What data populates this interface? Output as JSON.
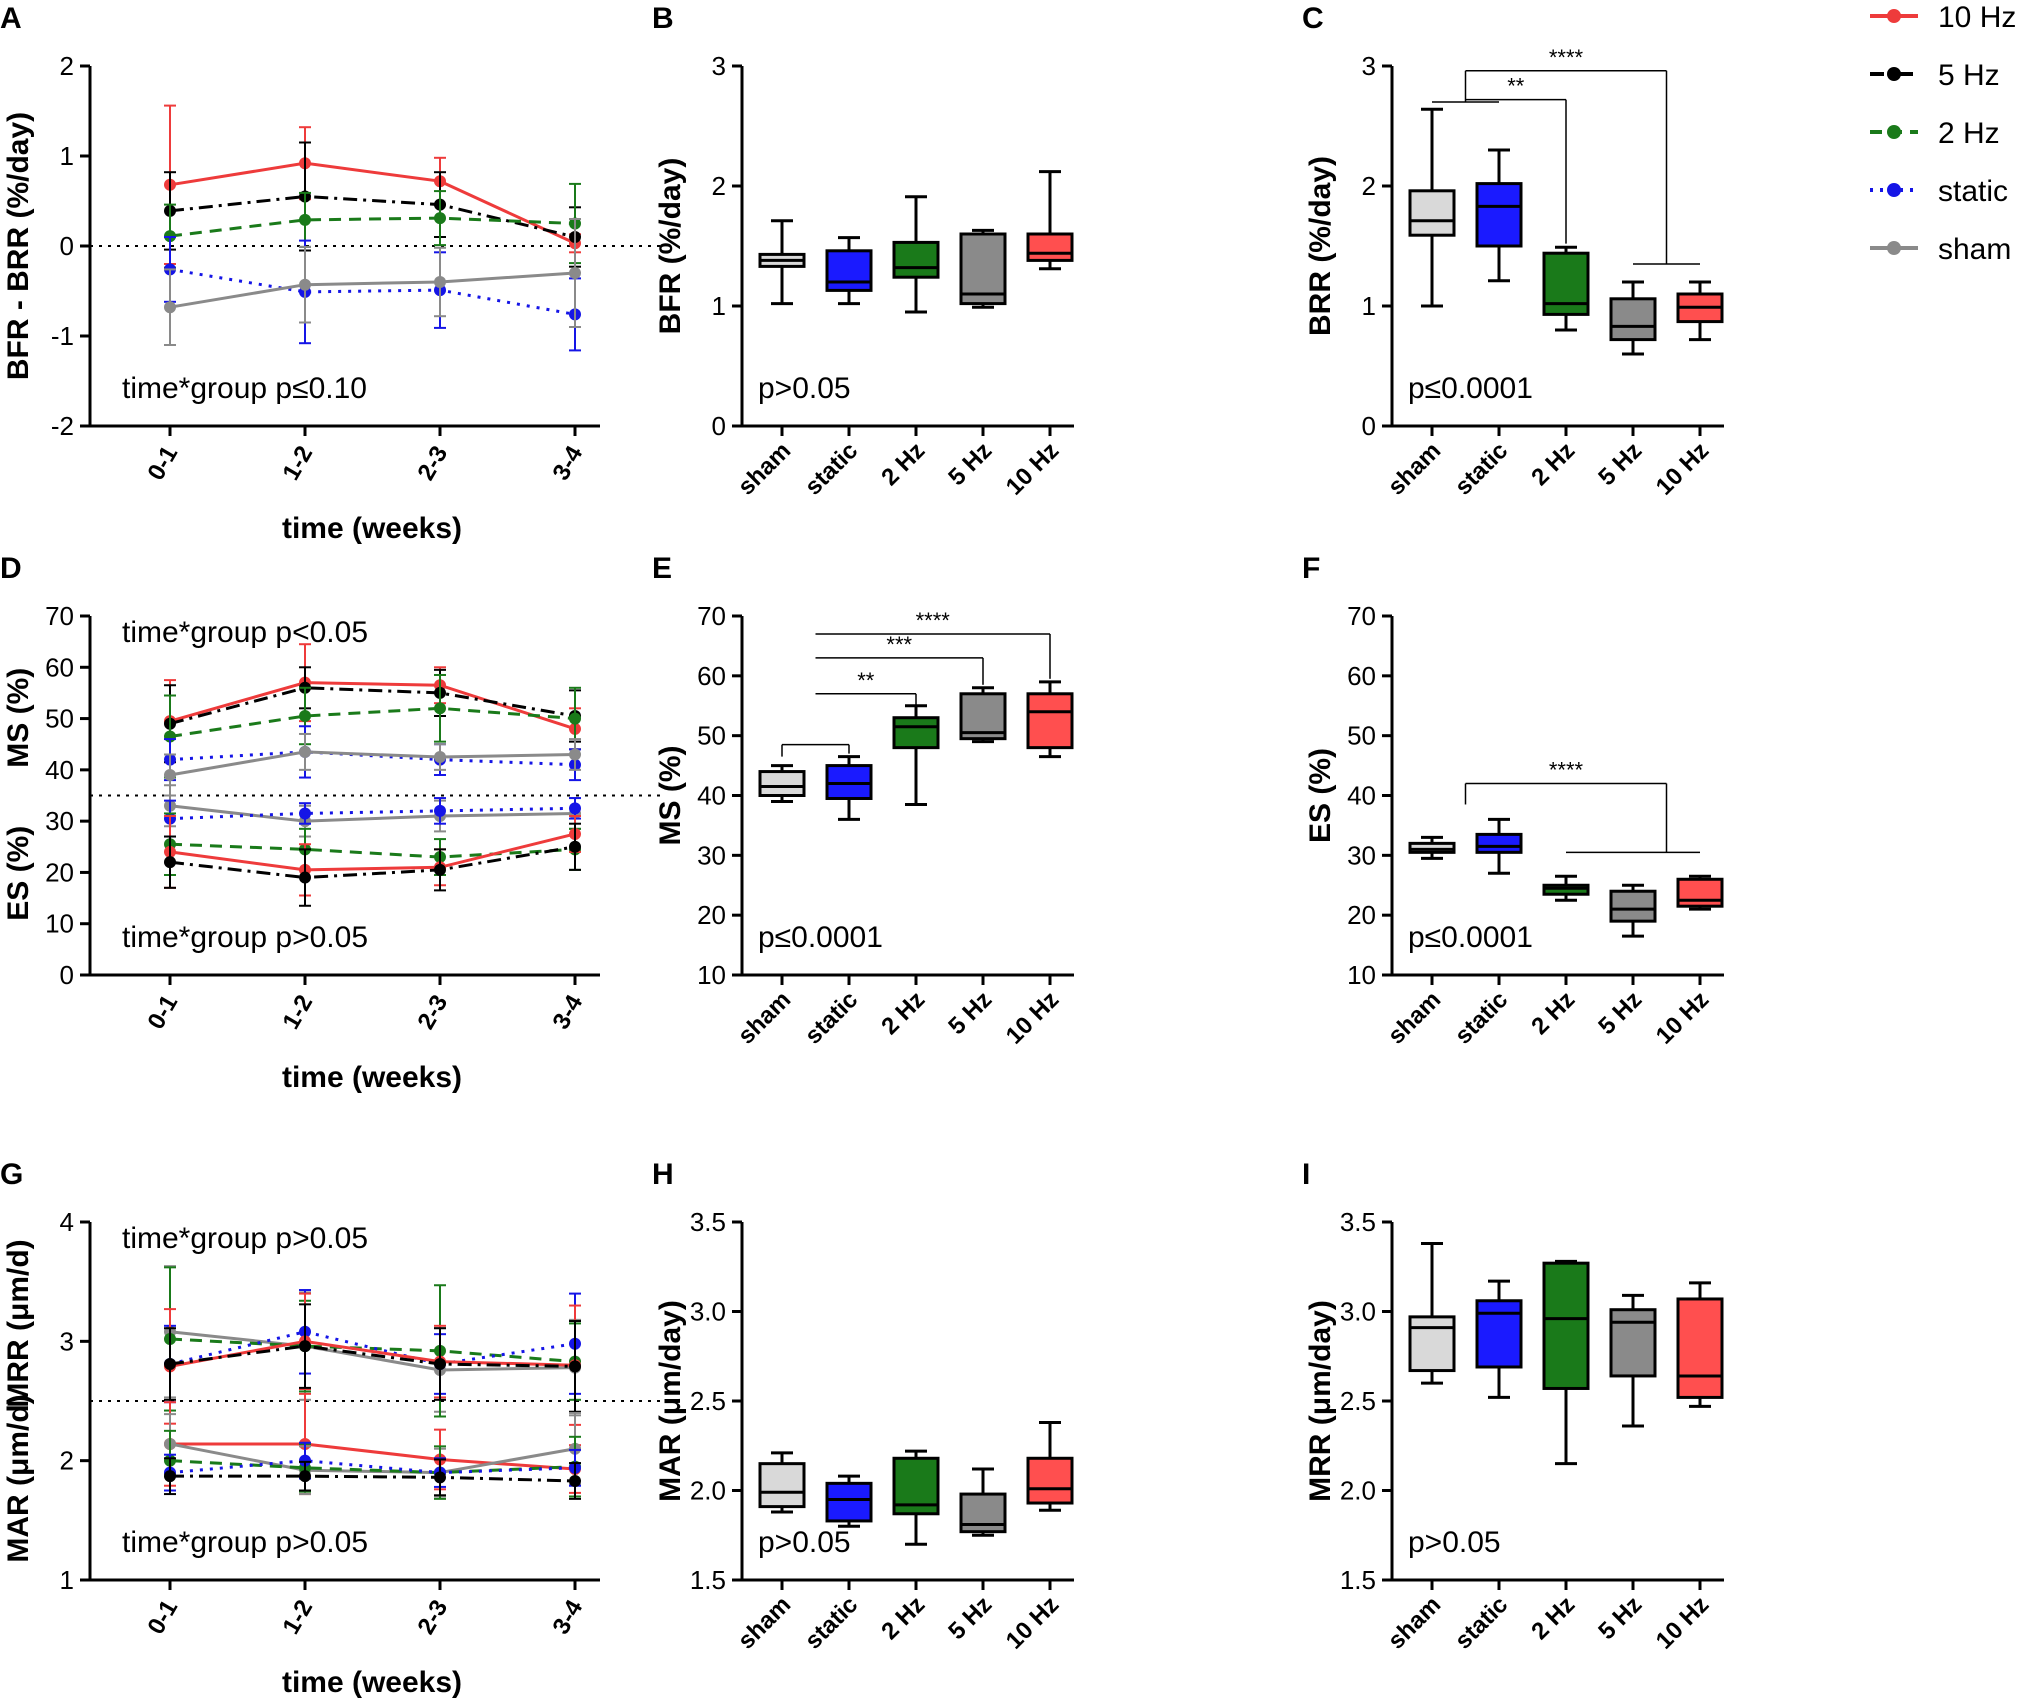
{
  "colors": {
    "10hz": "#ee3b3b",
    "5hz": "#000000",
    "2hz": "#1a7a1a",
    "static": "#1515e6",
    "sham": "#8a8a8a",
    "sham_box": "#d9d9d9",
    "static_box": "#1a1aff",
    "2hz_box": "#1a7a1a",
    "5hz_box": "#8a8a8a",
    "10hz_box": "#ff4f4f"
  },
  "legend": [
    {
      "key": "10hz",
      "label": "10 Hz",
      "style": "solid"
    },
    {
      "key": "5hz",
      "label": "5 Hz",
      "style": "dashdot"
    },
    {
      "key": "2hz",
      "label": "2 Hz",
      "style": "dashed"
    },
    {
      "key": "static",
      "label": "static",
      "style": "dotted"
    },
    {
      "key": "sham",
      "label": "sham",
      "style": "solid"
    }
  ],
  "time_categories": [
    "0-1",
    "1-2",
    "2-3",
    "3-4"
  ],
  "group_categories": [
    "sham",
    "static",
    "2 Hz",
    "5 Hz",
    "10 Hz"
  ],
  "chart_data": [
    {
      "id": "A",
      "type": "line",
      "letter": "A",
      "ylabel": "BFR - BRR (%/day)",
      "xlabel": "time (weeks)",
      "ylim": [
        -2,
        2
      ],
      "yticks": [
        "-2",
        "-1",
        "0",
        "1",
        "2"
      ],
      "refline": 0,
      "annotations": [
        "time*group p≤0.10"
      ],
      "series": [
        {
          "key": "10hz",
          "values": [
            0.68,
            0.92,
            0.72,
            0.03
          ],
          "err": [
            0.88,
            0.4,
            0.26,
            0.1
          ]
        },
        {
          "key": "5hz",
          "values": [
            0.39,
            0.55,
            0.46,
            0.1
          ],
          "err": [
            0.43,
            0.6,
            0.36,
            0.33
          ]
        },
        {
          "key": "2hz",
          "values": [
            0.11,
            0.29,
            0.31,
            0.25
          ],
          "err": [
            0.35,
            0.3,
            0.3,
            0.44
          ]
        },
        {
          "key": "static",
          "values": [
            -0.26,
            -0.51,
            -0.49,
            -0.76
          ],
          "err": [
            0.36,
            0.57,
            0.42,
            0.4
          ]
        },
        {
          "key": "sham",
          "values": [
            -0.68,
            -0.43,
            -0.4,
            -0.3
          ],
          "err": [
            0.42,
            0.42,
            0.38,
            0.6
          ]
        }
      ]
    },
    {
      "id": "B",
      "type": "box",
      "letter": "B",
      "ylabel": "BFR (%/day)",
      "ylim": [
        0,
        3
      ],
      "yticks": [
        "0",
        "1",
        "2",
        "3"
      ],
      "annotations": [
        "p>0.05"
      ],
      "boxes": [
        {
          "key": "sham",
          "min": 1.02,
          "q1": 1.33,
          "median": 1.38,
          "q3": 1.43,
          "max": 1.71
        },
        {
          "key": "static",
          "min": 1.02,
          "q1": 1.13,
          "median": 1.2,
          "q3": 1.46,
          "max": 1.57
        },
        {
          "key": "2hz",
          "min": 0.95,
          "q1": 1.24,
          "median": 1.32,
          "q3": 1.53,
          "max": 1.91
        },
        {
          "key": "5hz",
          "min": 0.99,
          "q1": 1.02,
          "median": 1.1,
          "q3": 1.6,
          "max": 1.63
        },
        {
          "key": "10hz",
          "min": 1.31,
          "q1": 1.38,
          "median": 1.44,
          "q3": 1.6,
          "max": 2.12
        }
      ]
    },
    {
      "id": "C",
      "type": "box",
      "letter": "C",
      "ylabel": "BRR (%/day)",
      "ylim": [
        0,
        3
      ],
      "yticks": [
        "0",
        "1",
        "2",
        "3"
      ],
      "annotations": [
        "p≤0.0001"
      ],
      "brackets": [
        {
          "label": "****",
          "y": 2.96,
          "from": 1.5,
          "to": 4.5,
          "left_group": [
            1,
            2
          ],
          "left_y": 2.7,
          "right_group": [
            4,
            5
          ],
          "right_y": 1.35
        },
        {
          "label": "**",
          "y": 2.72,
          "from": 1.5,
          "to": 3,
          "right_y": 1.52
        }
      ],
      "boxes": [
        {
          "key": "sham",
          "min": 1.0,
          "q1": 1.59,
          "median": 1.71,
          "q3": 1.96,
          "max": 2.64
        },
        {
          "key": "static",
          "min": 1.21,
          "q1": 1.5,
          "median": 1.83,
          "q3": 2.02,
          "max": 2.3
        },
        {
          "key": "2hz",
          "min": 0.8,
          "q1": 0.93,
          "median": 1.02,
          "q3": 1.44,
          "max": 1.49
        },
        {
          "key": "5hz",
          "min": 0.6,
          "q1": 0.72,
          "median": 0.83,
          "q3": 1.06,
          "max": 1.2
        },
        {
          "key": "10hz",
          "min": 0.72,
          "q1": 0.87,
          "median": 0.99,
          "q3": 1.1,
          "max": 1.2
        }
      ]
    },
    {
      "id": "D",
      "type": "line",
      "letter": "D",
      "ylabel_top": "MS (%)",
      "ylabel_bottom": "ES (%)",
      "xlabel": "time (weeks)",
      "ylim": [
        0,
        70
      ],
      "yticks": [
        "0",
        "10",
        "20",
        "30",
        "40",
        "50",
        "60",
        "70"
      ],
      "refline": 35,
      "annotations": [
        "time*group p<0.05",
        "time*group p>0.05"
      ],
      "series": [
        {
          "key": "10hz",
          "values": [
            49.5,
            57.0,
            56.5,
            48.0
          ],
          "err": [
            8.0,
            7.5,
            3.5,
            4.0
          ]
        },
        {
          "key": "5hz",
          "values": [
            49.0,
            56.0,
            55.0,
            50.5
          ],
          "err": [
            7.5,
            4.0,
            4.5,
            5.0
          ]
        },
        {
          "key": "2hz",
          "values": [
            46.5,
            50.5,
            52.0,
            50.0
          ],
          "err": [
            8.0,
            5.5,
            6.5,
            6.0
          ]
        },
        {
          "key": "static",
          "values": [
            42.0,
            43.5,
            42.0,
            41.0
          ],
          "err": [
            4.0,
            5.0,
            3.0,
            3.0
          ]
        },
        {
          "key": "sham",
          "values": [
            39.0,
            43.5,
            42.5,
            43.0
          ],
          "err": [
            4.0,
            3.5,
            2.5,
            3.0
          ]
        },
        {
          "key": "sham",
          "values": [
            33.0,
            30.0,
            31.0,
            31.5
          ],
          "err": [
            4.0,
            3.0,
            3.0,
            3.0
          ]
        },
        {
          "key": "static",
          "values": [
            30.5,
            31.5,
            32.0,
            32.5
          ],
          "err": [
            3.5,
            2.0,
            2.5,
            2.0
          ]
        },
        {
          "key": "2hz",
          "values": [
            25.5,
            24.5,
            23.0,
            24.5
          ],
          "err": [
            6.0,
            4.0,
            3.5,
            4.0
          ]
        },
        {
          "key": "10hz",
          "values": [
            24.0,
            20.5,
            21.0,
            27.5
          ],
          "err": [
            7.0,
            5.0,
            3.5,
            3.5
          ]
        },
        {
          "key": "5hz",
          "values": [
            22.0,
            19.0,
            20.5,
            25.0
          ],
          "err": [
            5.0,
            5.5,
            4.0,
            4.5
          ]
        }
      ]
    },
    {
      "id": "E",
      "type": "box",
      "letter": "E",
      "ylabel": "MS (%)",
      "ylim": [
        10,
        70
      ],
      "yticks": [
        "10",
        "20",
        "30",
        "40",
        "50",
        "60",
        "70"
      ],
      "annotations": [
        "p≤0.0001"
      ],
      "brackets": [
        {
          "label": "****",
          "y": 67.0,
          "from": 1.5,
          "to": 5,
          "right_y": 59.5
        },
        {
          "label": "***",
          "y": 63.0,
          "from": 1.5,
          "to": 4,
          "right_y": 58.5
        },
        {
          "label": "**",
          "y": 57.0,
          "from": 1.5,
          "to": 3,
          "right_y": 55.0
        },
        {
          "label": "",
          "y": 48.5,
          "from": 1,
          "to": 2,
          "left_y": 46.5,
          "right_y": 47.0
        }
      ],
      "boxes": [
        {
          "key": "sham",
          "min": 39.0,
          "q1": 40.0,
          "median": 41.5,
          "q3": 44.0,
          "max": 45.0
        },
        {
          "key": "static",
          "min": 36.0,
          "q1": 39.5,
          "median": 42.0,
          "q3": 45.0,
          "max": 46.5
        },
        {
          "key": "2hz",
          "min": 38.5,
          "q1": 48.0,
          "median": 51.5,
          "q3": 53.0,
          "max": 55.0
        },
        {
          "key": "5hz",
          "min": 49.0,
          "q1": 49.5,
          "median": 50.5,
          "q3": 57.0,
          "max": 58.0
        },
        {
          "key": "10hz",
          "min": 46.5,
          "q1": 48.0,
          "median": 54.0,
          "q3": 57.0,
          "max": 59.0
        }
      ]
    },
    {
      "id": "F",
      "type": "box",
      "letter": "F",
      "ylabel": "ES (%)",
      "ylim": [
        10,
        70
      ],
      "yticks": [
        "10",
        "20",
        "30",
        "40",
        "50",
        "60",
        "70"
      ],
      "annotations": [
        "p≤0.0001"
      ],
      "brackets": [
        {
          "label": "****",
          "y": 42.0,
          "from": 1.5,
          "to": 4.5,
          "left_y": 38.5,
          "right_y": 30.5
        },
        {
          "label": "",
          "y": 30.5,
          "from": 3,
          "to": 5,
          "left_y": 30.5,
          "right_y": 30.5
        }
      ],
      "boxes": [
        {
          "key": "sham",
          "min": 29.5,
          "q1": 30.5,
          "median": 31.0,
          "q3": 32.0,
          "max": 33.0
        },
        {
          "key": "static",
          "min": 27.0,
          "q1": 30.5,
          "median": 31.5,
          "q3": 33.5,
          "max": 36.0
        },
        {
          "key": "2hz",
          "min": 22.5,
          "q1": 23.5,
          "median": 24.5,
          "q3": 25.0,
          "max": 26.5
        },
        {
          "key": "5hz",
          "min": 16.5,
          "q1": 19.0,
          "median": 21.0,
          "q3": 24.0,
          "max": 25.0
        },
        {
          "key": "10hz",
          "min": 21.0,
          "q1": 21.5,
          "median": 22.5,
          "q3": 26.0,
          "max": 26.5
        }
      ]
    },
    {
      "id": "G",
      "type": "line",
      "letter": "G",
      "ylabel_top": "MRR (μm/d)",
      "ylabel_bottom": "MAR (μm/d)",
      "xlabel": "time (weeks)",
      "ylim": [
        1,
        4
      ],
      "yticks": [
        "1",
        "2",
        "3",
        "4"
      ],
      "refline": 2.5,
      "annotations": [
        "time*group p>0.05",
        "time*group p>0.05"
      ],
      "series": [
        {
          "key": "sham",
          "values": [
            3.08,
            2.96,
            2.76,
            2.78
          ],
          "err": [
            0.55,
            0.45,
            0.35,
            0.4
          ]
        },
        {
          "key": "2hz",
          "values": [
            3.02,
            2.96,
            2.92,
            2.83
          ],
          "err": [
            0.6,
            0.38,
            0.55,
            0.32
          ]
        },
        {
          "key": "static",
          "values": [
            2.81,
            3.08,
            2.81,
            2.98
          ],
          "err": [
            0.32,
            0.35,
            0.25,
            0.42
          ]
        },
        {
          "key": "10hz",
          "values": [
            2.79,
            3.0,
            2.83,
            2.8
          ],
          "err": [
            0.48,
            0.4,
            0.3,
            0.5
          ]
        },
        {
          "key": "5hz",
          "values": [
            2.81,
            2.96,
            2.81,
            2.79
          ],
          "err": [
            0.3,
            0.35,
            0.3,
            0.38
          ]
        },
        {
          "key": "10hz",
          "values": [
            2.14,
            2.14,
            2.01,
            1.93
          ],
          "err": [
            0.35,
            0.42,
            0.25,
            0.2
          ]
        },
        {
          "key": "sham",
          "values": [
            2.14,
            1.92,
            1.9,
            2.1
          ],
          "err": [
            0.25,
            0.2,
            0.2,
            0.3
          ]
        },
        {
          "key": "2hz",
          "values": [
            2.0,
            1.94,
            1.9,
            1.95
          ],
          "err": [
            0.25,
            0.2,
            0.22,
            0.25
          ]
        },
        {
          "key": "static",
          "values": [
            1.9,
            2.0,
            1.9,
            1.94
          ],
          "err": [
            0.15,
            0.15,
            0.12,
            0.15
          ]
        },
        {
          "key": "5hz",
          "values": [
            1.87,
            1.87,
            1.86,
            1.83
          ],
          "err": [
            0.15,
            0.12,
            0.15,
            0.15
          ]
        }
      ]
    },
    {
      "id": "H",
      "type": "box",
      "letter": "H",
      "ylabel": "MAR (μm/day)",
      "ylim": [
        1.5,
        3.5
      ],
      "yticks": [
        "1.5",
        "2.0",
        "2.5",
        "3.0",
        "3.5"
      ],
      "annotations": [
        "p>0.05"
      ],
      "boxes": [
        {
          "key": "sham",
          "min": 1.88,
          "q1": 1.91,
          "median": 1.99,
          "q3": 2.15,
          "max": 2.21
        },
        {
          "key": "static",
          "min": 1.8,
          "q1": 1.83,
          "median": 1.95,
          "q3": 2.04,
          "max": 2.08
        },
        {
          "key": "2hz",
          "min": 1.7,
          "q1": 1.87,
          "median": 1.92,
          "q3": 2.18,
          "max": 2.22
        },
        {
          "key": "5hz",
          "min": 1.75,
          "q1": 1.77,
          "median": 1.81,
          "q3": 1.98,
          "max": 2.12
        },
        {
          "key": "10hz",
          "min": 1.89,
          "q1": 1.93,
          "median": 2.01,
          "q3": 2.18,
          "max": 2.38
        }
      ]
    },
    {
      "id": "I",
      "type": "box",
      "letter": "I",
      "ylabel": "MRR (μm/day)",
      "ylim": [
        1.5,
        3.5
      ],
      "yticks": [
        "1.5",
        "2.0",
        "2.5",
        "3.0",
        "3.5"
      ],
      "annotations": [
        "p>0.05"
      ],
      "boxes": [
        {
          "key": "sham",
          "min": 2.6,
          "q1": 2.67,
          "median": 2.91,
          "q3": 2.97,
          "max": 3.38
        },
        {
          "key": "static",
          "min": 2.52,
          "q1": 2.69,
          "median": 2.99,
          "q3": 3.06,
          "max": 3.17
        },
        {
          "key": "2hz",
          "min": 2.15,
          "q1": 2.57,
          "median": 2.96,
          "q3": 3.27,
          "max": 3.28
        },
        {
          "key": "5hz",
          "min": 2.36,
          "q1": 2.64,
          "median": 2.94,
          "q3": 3.01,
          "max": 3.09
        },
        {
          "key": "10hz",
          "min": 2.47,
          "q1": 2.52,
          "median": 2.64,
          "q3": 3.07,
          "max": 3.16
        }
      ]
    }
  ]
}
